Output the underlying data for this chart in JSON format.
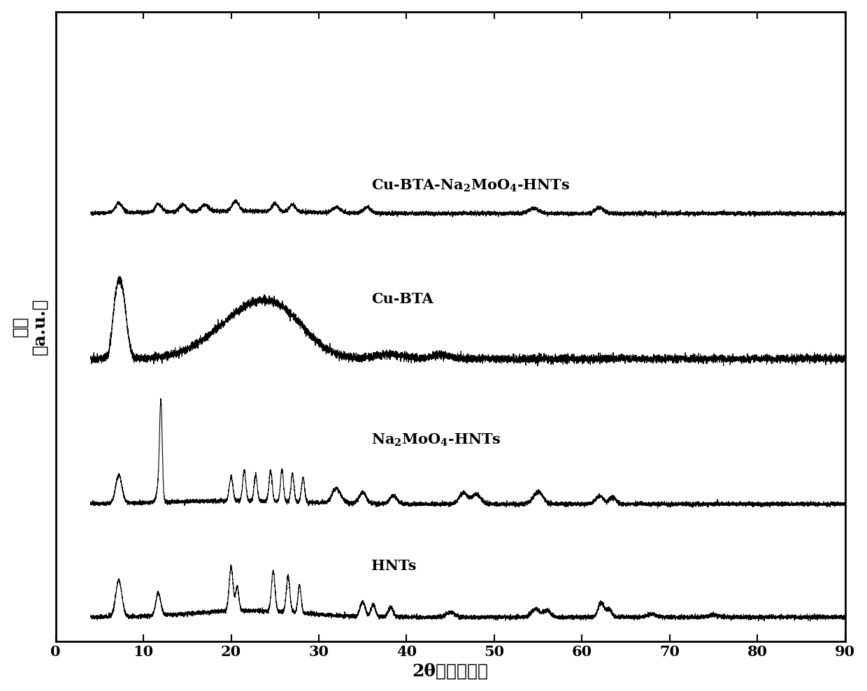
{
  "xlabel": "2θ（角度　，",
  "ylabel": "强度\n（a.u.）",
  "xlim": [
    0,
    90
  ],
  "xticks": [
    0,
    10,
    20,
    30,
    40,
    50,
    60,
    70,
    80,
    90
  ],
  "offsets": [
    0.0,
    1.4,
    3.2,
    5.0
  ],
  "background_color": "#ffffff",
  "line_color": "#000000",
  "label_fontsize": 15,
  "tick_fontsize": 15
}
